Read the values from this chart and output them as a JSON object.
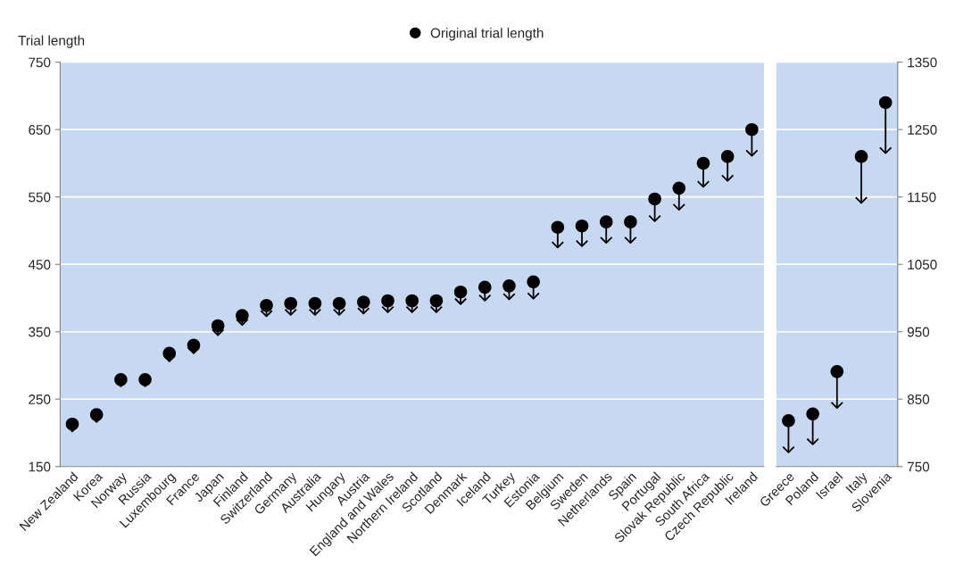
{
  "chart_data": [
    {
      "type": "scatter",
      "ylabel": "Trial length",
      "categories": [
        "New Zealand",
        "Korea",
        "Norway",
        "Russia",
        "Luxembourg",
        "France",
        "Japan",
        "Finland",
        "Switzerland",
        "Germany",
        "Australia",
        "Hungary",
        "Austria",
        "England and Wales",
        "Northern Ireland",
        "Scotland",
        "Denmark",
        "Iceland",
        "Turkey",
        "Estonia",
        "Belgium",
        "Sweden",
        "Netherlands",
        "Spain",
        "Portugal",
        "Slovak Republic",
        "South Africa",
        "Czech Republic",
        "Ireland"
      ],
      "series": [
        {
          "name": "Original trial length",
          "color": "#000000",
          "values": [
            213,
            227,
            279,
            279,
            318,
            330,
            359,
            374,
            389,
            392,
            392,
            392,
            394,
            396,
            396,
            396,
            409,
            416,
            418,
            424,
            505,
            507,
            513,
            513,
            547,
            563,
            600,
            610,
            650
          ],
          "errors": [
            [
              202,
              213
            ],
            [
              216,
              227
            ],
            [
              269,
              279
            ],
            [
              269,
              279
            ],
            [
              306,
              318
            ],
            [
              318,
              330
            ],
            [
              345,
              359
            ],
            [
              360,
              374
            ],
            [
              373,
              389
            ],
            [
              375,
              392
            ],
            [
              375,
              392
            ],
            [
              375,
              392
            ],
            [
              377,
              394
            ],
            [
              379,
              396
            ],
            [
              379,
              396
            ],
            [
              379,
              396
            ],
            [
              391,
              409
            ],
            [
              396,
              416
            ],
            [
              398,
              418
            ],
            [
              399,
              424
            ],
            [
              475,
              505
            ],
            [
              477,
              507
            ],
            [
              482,
              513
            ],
            [
              482,
              513
            ],
            [
              514,
              547
            ],
            [
              531,
              563
            ],
            [
              565,
              600
            ],
            [
              574,
              610
            ],
            [
              611,
              650
            ]
          ]
        }
      ],
      "ylim": [
        150,
        750
      ],
      "yticks": [
        150,
        250,
        350,
        450,
        550,
        650,
        750
      ],
      "grid": "y",
      "legend": "top",
      "marker": "circle"
    },
    {
      "type": "scatter",
      "categories": [
        "Greece",
        "Poland",
        "Israel",
        "Italy",
        "Slovenia"
      ],
      "series": [
        {
          "color": "#000000",
          "axis": "y2",
          "values": [
            818,
            828,
            891,
            1210,
            1290
          ],
          "errors": [
            [
              771,
              818
            ],
            [
              783,
              828
            ],
            [
              837,
              891
            ],
            [
              1141,
              1210
            ],
            [
              1215,
              1290
            ]
          ]
        }
      ],
      "y2lim": [
        750,
        1350
      ],
      "y2ticks": [
        750,
        850,
        950,
        1050,
        1150,
        1250,
        1350
      ],
      "grid": "y",
      "marker": "circle"
    }
  ]
}
